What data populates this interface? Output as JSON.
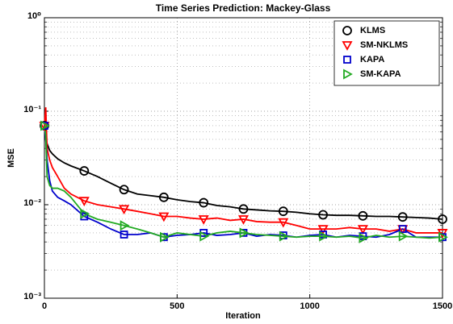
{
  "chart_data": {
    "type": "line",
    "title": "Time Series  Prediction: Mackey-Glass",
    "x_label": "Iteration",
    "y_label": "MSE",
    "log_y": true,
    "grid": true,
    "minor_grid": true,
    "legend_position": "upper right",
    "xlim": [
      0,
      1500
    ],
    "xticks": [
      0,
      500,
      1000,
      1500
    ],
    "ylim": [
      0.001,
      1
    ],
    "yticks": [
      {
        "value": 0.001,
        "label": "10⁻³"
      },
      {
        "value": 0.01,
        "label": "10⁻²"
      },
      {
        "value": 0.1,
        "label": "10⁻¹"
      },
      {
        "value": 1,
        "label": "10⁰"
      }
    ],
    "x": [
      0,
      5,
      10,
      20,
      30,
      50,
      75,
      100,
      150,
      200,
      250,
      300,
      350,
      400,
      450,
      500,
      550,
      600,
      650,
      700,
      750,
      800,
      850,
      900,
      950,
      1000,
      1050,
      1100,
      1150,
      1200,
      1250,
      1300,
      1350,
      1400,
      1450,
      1500
    ],
    "series": [
      {
        "name": "KLMS",
        "color": "#000000",
        "marker": "circle",
        "values": [
          0.07,
          0.055,
          0.045,
          0.038,
          0.035,
          0.031,
          0.028,
          0.026,
          0.023,
          0.02,
          0.017,
          0.0145,
          0.013,
          0.0125,
          0.012,
          0.0113,
          0.0108,
          0.0105,
          0.0098,
          0.0095,
          0.009,
          0.0088,
          0.0086,
          0.0085,
          0.0083,
          0.008,
          0.0078,
          0.0077,
          0.0077,
          0.0076,
          0.0075,
          0.0075,
          0.0074,
          0.0073,
          0.0072,
          0.007
        ]
      },
      {
        "name": "SM-NKLMS",
        "color": "#ff0000",
        "marker": "triangle-down",
        "values": [
          0.07,
          0.11,
          0.04,
          0.03,
          0.025,
          0.02,
          0.015,
          0.013,
          0.011,
          0.01,
          0.0095,
          0.009,
          0.0085,
          0.008,
          0.0075,
          0.0075,
          0.0072,
          0.007,
          0.0072,
          0.0068,
          0.007,
          0.0066,
          0.0065,
          0.0065,
          0.006,
          0.0055,
          0.0055,
          0.0055,
          0.0057,
          0.0055,
          0.0055,
          0.0052,
          0.0055,
          0.005,
          0.005,
          0.005
        ]
      },
      {
        "name": "KAPA",
        "color": "#0000cc",
        "marker": "square",
        "values": [
          0.07,
          0.05,
          0.03,
          0.018,
          0.014,
          0.012,
          0.011,
          0.01,
          0.0075,
          0.0065,
          0.0055,
          0.0048,
          0.0048,
          0.005,
          0.0045,
          0.0047,
          0.0048,
          0.005,
          0.0047,
          0.0048,
          0.005,
          0.0046,
          0.0048,
          0.0047,
          0.0045,
          0.0047,
          0.0048,
          0.0045,
          0.0047,
          0.0046,
          0.0045,
          0.0048,
          0.0055,
          0.0045,
          0.0045,
          0.0045
        ]
      },
      {
        "name": "SM-KAPA",
        "color": "#22aa22",
        "marker": "triangle-right",
        "values": [
          0.07,
          0.055,
          0.02,
          0.016,
          0.015,
          0.015,
          0.014,
          0.012,
          0.008,
          0.007,
          0.0065,
          0.006,
          0.0055,
          0.005,
          0.0045,
          0.005,
          0.0048,
          0.0046,
          0.005,
          0.0052,
          0.005,
          0.0048,
          0.0047,
          0.0046,
          0.0045,
          0.0046,
          0.0046,
          0.0045,
          0.0046,
          0.0044,
          0.0047,
          0.0045,
          0.0046,
          0.0045,
          0.0044,
          0.0045
        ]
      }
    ]
  }
}
